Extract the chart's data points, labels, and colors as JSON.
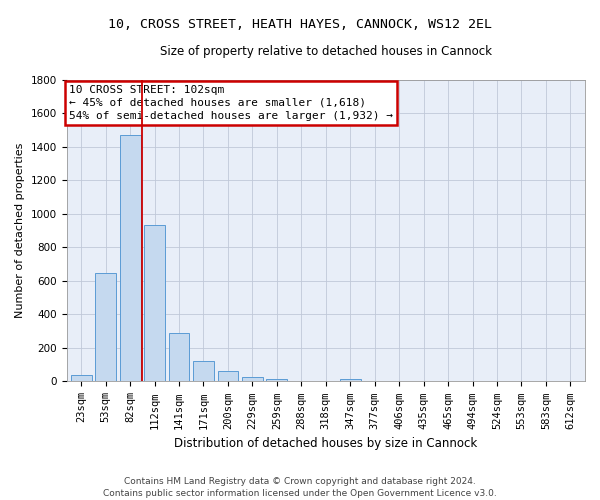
{
  "title_line1": "10, CROSS STREET, HEATH HAYES, CANNOCK, WS12 2EL",
  "title_line2": "Size of property relative to detached houses in Cannock",
  "xlabel": "Distribution of detached houses by size in Cannock",
  "ylabel": "Number of detached properties",
  "bar_color": "#c5d9ef",
  "bar_edge_color": "#5b9bd5",
  "annotation_text_line1": "10 CROSS STREET: 102sqm",
  "annotation_text_line2": "← 45% of detached houses are smaller (1,618)",
  "annotation_text_line3": "54% of semi-detached houses are larger (1,932) →",
  "vline_color": "#cc0000",
  "annotation_box_edgecolor": "#cc0000",
  "categories": [
    "23sqm",
    "53sqm",
    "82sqm",
    "112sqm",
    "141sqm",
    "171sqm",
    "200sqm",
    "229sqm",
    "259sqm",
    "288sqm",
    "318sqm",
    "347sqm",
    "377sqm",
    "406sqm",
    "435sqm",
    "465sqm",
    "494sqm",
    "524sqm",
    "553sqm",
    "583sqm",
    "612sqm"
  ],
  "values": [
    38,
    650,
    1470,
    935,
    290,
    125,
    65,
    25,
    15,
    0,
    0,
    15,
    0,
    0,
    0,
    0,
    0,
    0,
    0,
    0,
    0
  ],
  "ylim": [
    0,
    1800
  ],
  "yticks": [
    0,
    200,
    400,
    600,
    800,
    1000,
    1200,
    1400,
    1600,
    1800
  ],
  "vline_x_index": 2.5,
  "background_color": "#ffffff",
  "plot_bg_color": "#e8eef8",
  "grid_color": "#c0c8d8",
  "footer_line1": "Contains HM Land Registry data © Crown copyright and database right 2024.",
  "footer_line2": "Contains public sector information licensed under the Open Government Licence v3.0.",
  "title1_fontsize": 9.5,
  "title2_fontsize": 8.5,
  "annot_fontsize": 8.0,
  "xlabel_fontsize": 8.5,
  "ylabel_fontsize": 8.0,
  "tick_fontsize": 7.5,
  "footer_fontsize": 6.5
}
